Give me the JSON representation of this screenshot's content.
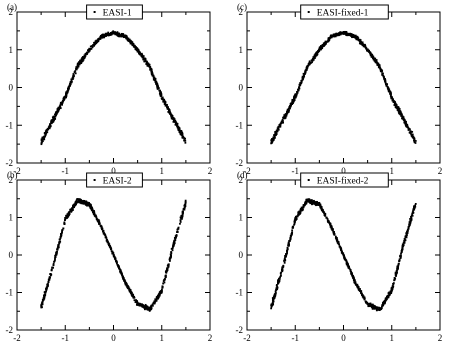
{
  "figure": {
    "panel_count": 4
  },
  "chart_data": [
    {
      "type": "scatter",
      "panel_label": "(a)",
      "xlim": [
        -2,
        2
      ],
      "ylim": [
        -2,
        2
      ],
      "xticks": [
        -2,
        -1,
        0,
        1,
        2
      ],
      "yticks": [
        -2,
        -1,
        0,
        1,
        2
      ],
      "xticklabels": [
        "-2",
        "-1",
        "0",
        "1",
        "2"
      ],
      "yticklabels": [
        "-2",
        "-1",
        "0",
        "1",
        "2"
      ],
      "legend": {
        "entries": [
          "EASI-1"
        ],
        "placement": "top-center"
      },
      "series": [
        {
          "name": "EASI-1",
          "curve": "parabola",
          "x_range": [
            -1.5,
            1.5
          ],
          "x": [
            -1.5,
            -1.25,
            -1.0,
            -0.75,
            -0.5,
            -0.25,
            0.0,
            0.25,
            0.5,
            0.75,
            1.0,
            1.25,
            1.5
          ],
          "y": [
            -1.45,
            -0.85,
            -0.25,
            0.55,
            1.0,
            1.35,
            1.45,
            1.35,
            1.0,
            0.55,
            -0.25,
            -0.85,
            -1.45
          ]
        }
      ],
      "grid": false
    },
    {
      "type": "scatter",
      "panel_label": "(c)",
      "xlim": [
        -2,
        2
      ],
      "ylim": [
        -2,
        2
      ],
      "xticks": [
        -2,
        -1,
        0,
        1,
        2
      ],
      "yticks": [
        -2,
        -1,
        0,
        1,
        2
      ],
      "xticklabels": [
        "-2",
        "-1",
        "0",
        "1",
        "2"
      ],
      "yticklabels": [
        "-2",
        "-1",
        "0",
        "1",
        "2"
      ],
      "legend": {
        "entries": [
          "EASI-fixed-1"
        ],
        "placement": "top-center"
      },
      "series": [
        {
          "name": "EASI-fixed-1",
          "curve": "parabola",
          "x_range": [
            -1.5,
            1.5
          ],
          "x": [
            -1.5,
            -1.25,
            -1.0,
            -0.75,
            -0.5,
            -0.25,
            0.0,
            0.25,
            0.5,
            0.75,
            1.0,
            1.25,
            1.5
          ],
          "y": [
            -1.45,
            -0.85,
            -0.25,
            0.55,
            1.0,
            1.35,
            1.45,
            1.35,
            1.0,
            0.55,
            -0.25,
            -0.85,
            -1.45
          ]
        }
      ],
      "grid": false
    },
    {
      "type": "scatter",
      "panel_label": "(b)",
      "xlim": [
        -2,
        2
      ],
      "ylim": [
        -2,
        2
      ],
      "xticks": [
        -2,
        -1,
        0,
        1,
        2
      ],
      "yticks": [
        -2,
        -1,
        0,
        1,
        2
      ],
      "xticklabels": [
        "-2",
        "-1",
        "0",
        "1",
        "2"
      ],
      "yticklabels": [
        "-2",
        "-1",
        "0",
        "1",
        "2"
      ],
      "legend": {
        "entries": [
          "EASI-2"
        ],
        "placement": "top-center"
      },
      "series": [
        {
          "name": "EASI-2",
          "curve": "cubic",
          "x_range": [
            -1.5,
            1.5
          ],
          "x": [
            -1.5,
            -1.25,
            -1.0,
            -0.75,
            -0.5,
            -0.25,
            0.0,
            0.25,
            0.5,
            0.75,
            1.0,
            1.25,
            1.5
          ],
          "y": [
            -1.4,
            -0.3,
            0.95,
            1.45,
            1.35,
            0.75,
            0.0,
            -0.75,
            -1.3,
            -1.45,
            -0.95,
            0.3,
            1.4
          ]
        }
      ],
      "grid": false
    },
    {
      "type": "scatter",
      "panel_label": "(d)",
      "xlim": [
        -2,
        2
      ],
      "ylim": [
        -2,
        2
      ],
      "xticks": [
        -2,
        -1,
        0,
        1,
        2
      ],
      "yticks": [
        -2,
        -1,
        0,
        1,
        2
      ],
      "xticklabels": [
        "-2",
        "-1",
        "0",
        "1",
        "2"
      ],
      "yticklabels": [
        "-2",
        "-1",
        "0",
        "1",
        "2"
      ],
      "legend": {
        "entries": [
          "EASI-fixed-2"
        ],
        "placement": "top-center"
      },
      "series": [
        {
          "name": "EASI-fixed-2",
          "curve": "cubic",
          "x_range": [
            -1.5,
            1.5
          ],
          "x": [
            -1.5,
            -1.25,
            -1.0,
            -0.75,
            -0.5,
            -0.25,
            0.0,
            0.25,
            0.5,
            0.75,
            1.0,
            1.25,
            1.5
          ],
          "y": [
            -1.4,
            -0.3,
            0.95,
            1.45,
            1.35,
            0.75,
            0.0,
            -0.75,
            -1.3,
            -1.45,
            -0.95,
            0.3,
            1.4
          ]
        }
      ],
      "grid": false
    }
  ]
}
